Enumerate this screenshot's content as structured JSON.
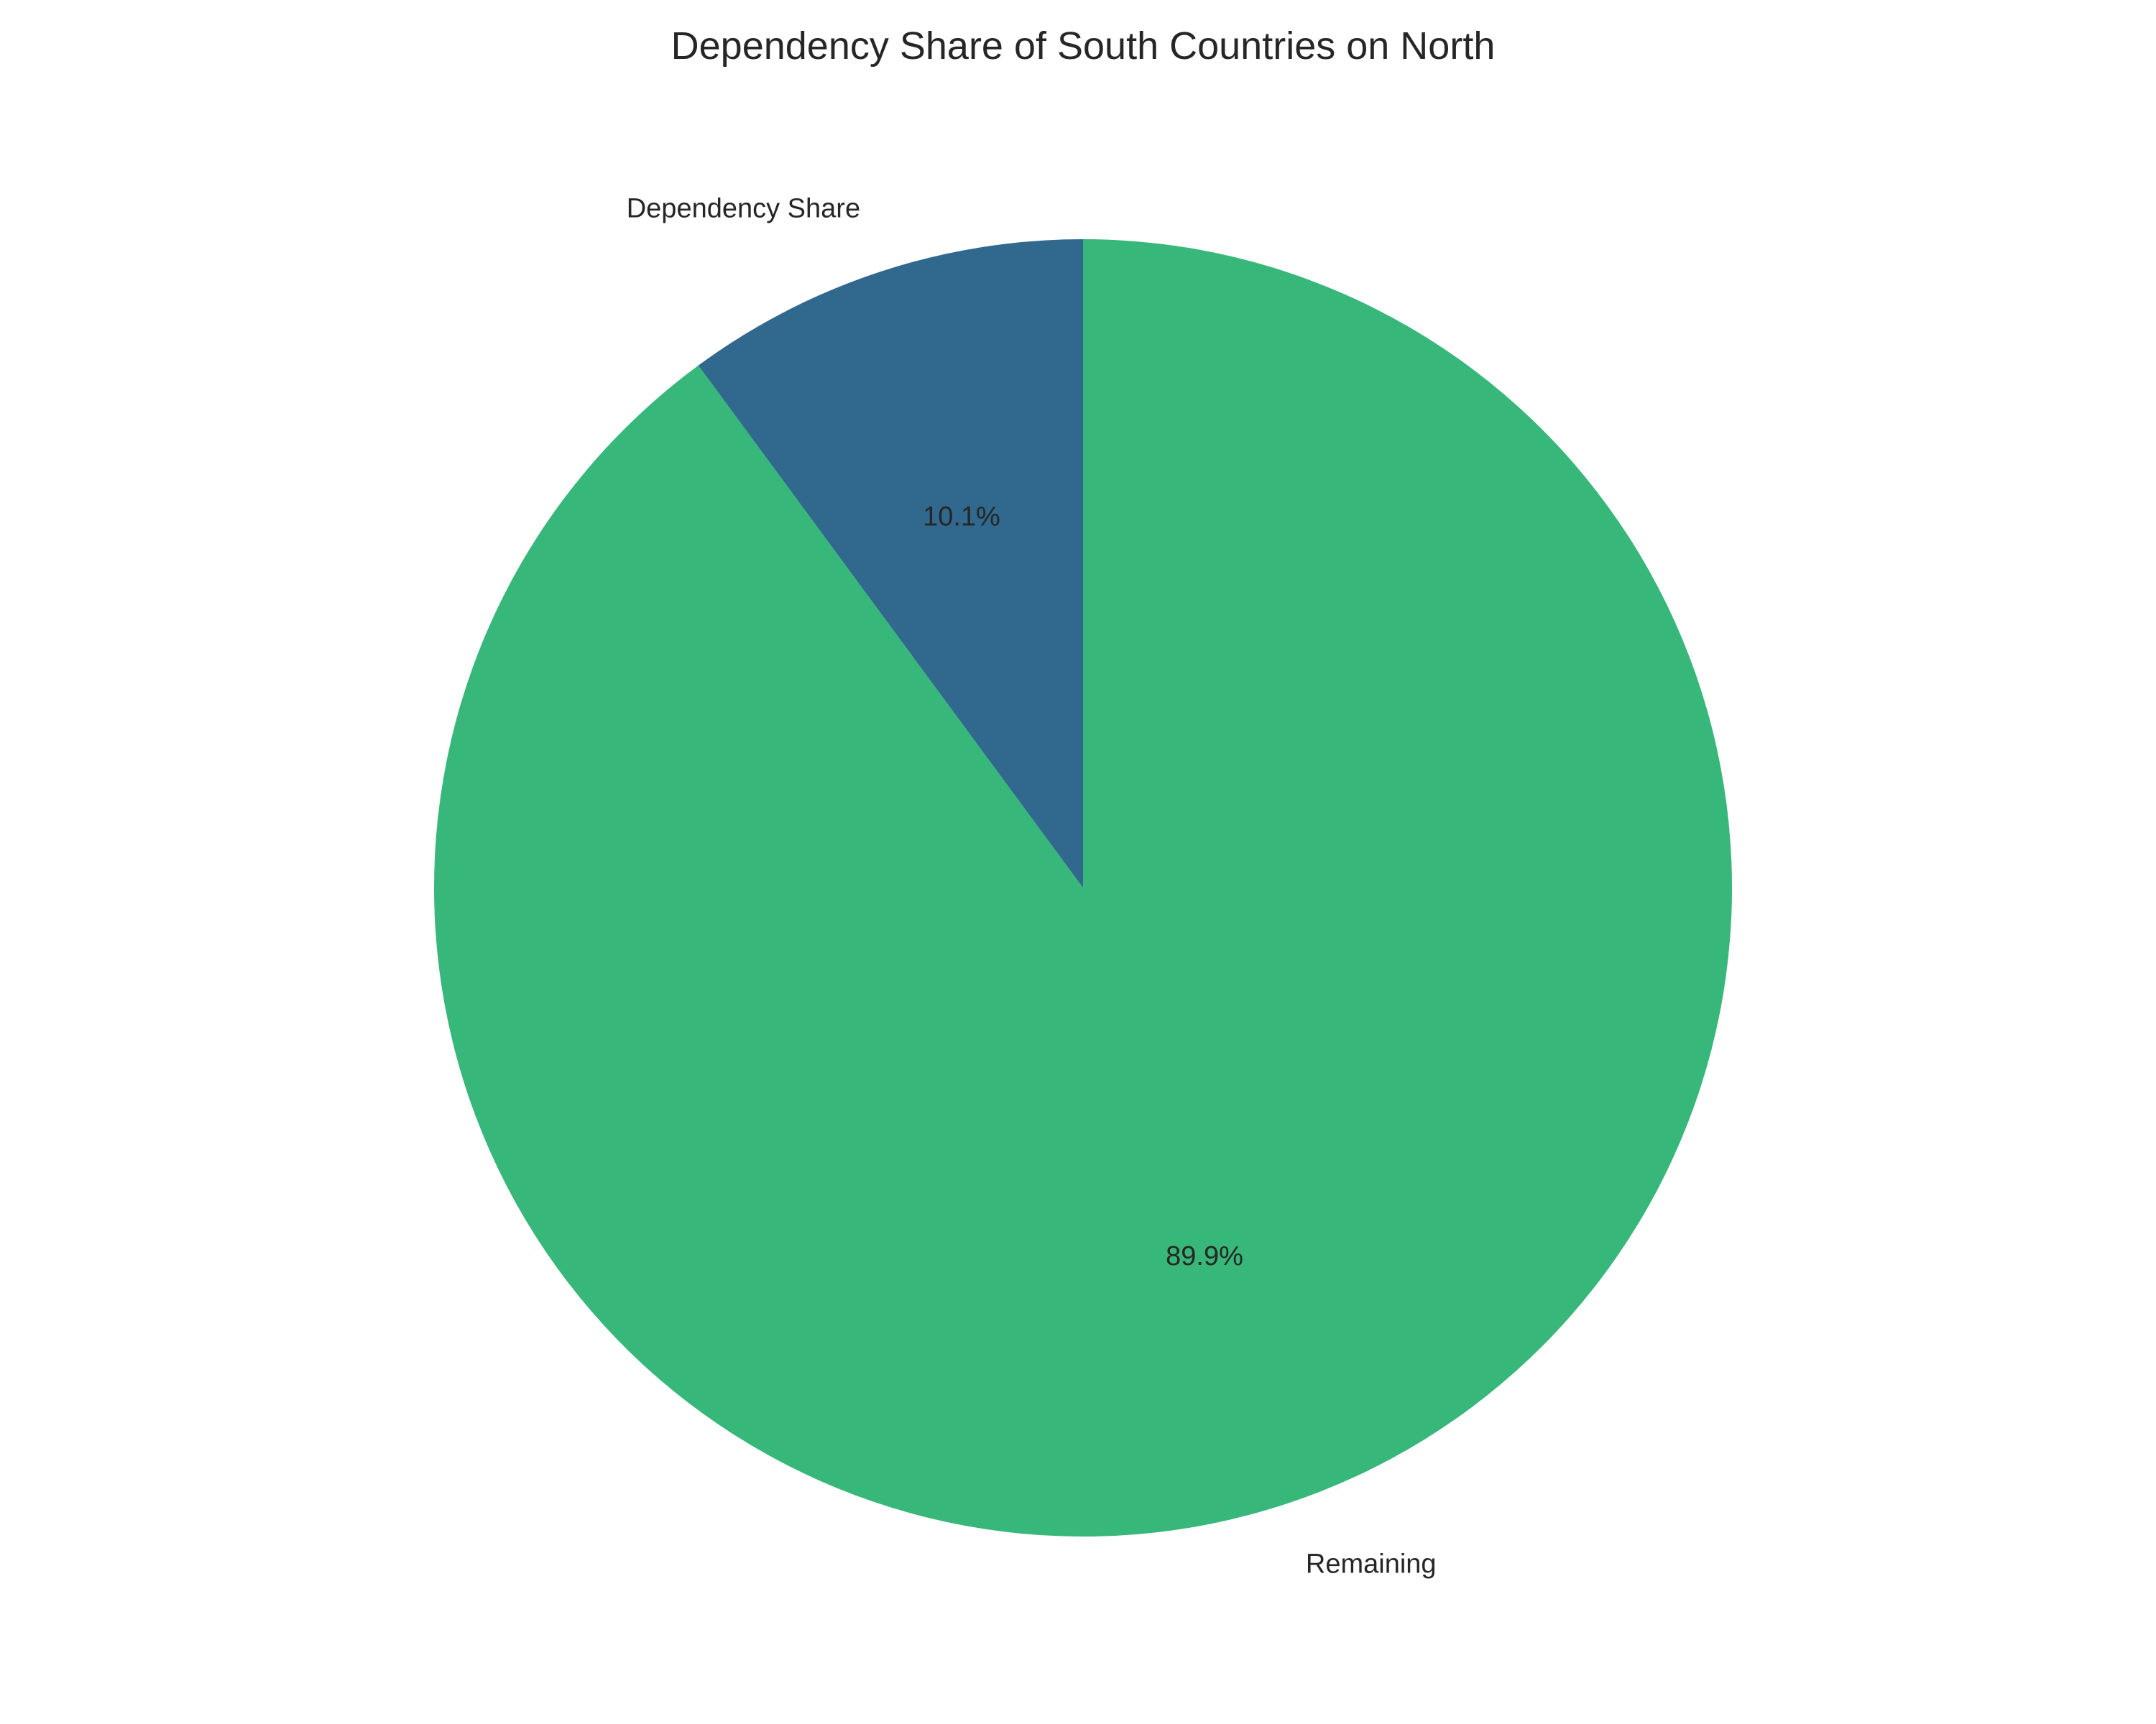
{
  "chart_data": {
    "type": "pie",
    "title": "Dependency Share of South Countries on North",
    "slices": [
      {
        "label": "Dependency Share",
        "value": 10.1,
        "pct_label": "10.1%",
        "color": "#31688e"
      },
      {
        "label": "Remaining",
        "value": 89.9,
        "pct_label": "89.9%",
        "color": "#37b779"
      }
    ],
    "start_angle_deg": 90,
    "direction": "counterclockwise",
    "legend": "none"
  }
}
